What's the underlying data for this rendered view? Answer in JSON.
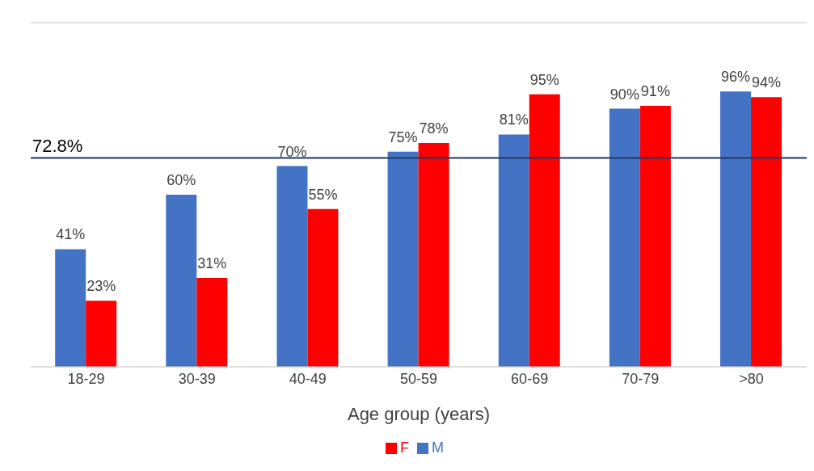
{
  "chart_data": {
    "type": "bar",
    "categories": [
      "18-29",
      "30-39",
      "40-49",
      "50-59",
      "60-69",
      "70-79",
      ">80"
    ],
    "series": [
      {
        "name": "M",
        "color": "#4472c4",
        "values": [
          41,
          60,
          70,
          75,
          81,
          90,
          96
        ],
        "value_labels": [
          "41%",
          "60%",
          "70%",
          "75%",
          "81%",
          "90%",
          "96%"
        ]
      },
      {
        "name": "F",
        "color": "#ff0000",
        "values": [
          23,
          31,
          55,
          78,
          95,
          91,
          94
        ],
        "value_labels": [
          "23%",
          "31%",
          "55%",
          "78%",
          "95%",
          "91%",
          "94%"
        ]
      }
    ],
    "xlabel": "Age group (years)",
    "ylim": [
      0,
      120
    ],
    "tick_labels": "x",
    "grid": "y",
    "legend": "bottom",
    "ref_lines": [
      {
        "axis": "y",
        "value": 72.8,
        "label": "72.8%",
        "color": "#1f3864",
        "line_style": "solid"
      }
    ]
  }
}
